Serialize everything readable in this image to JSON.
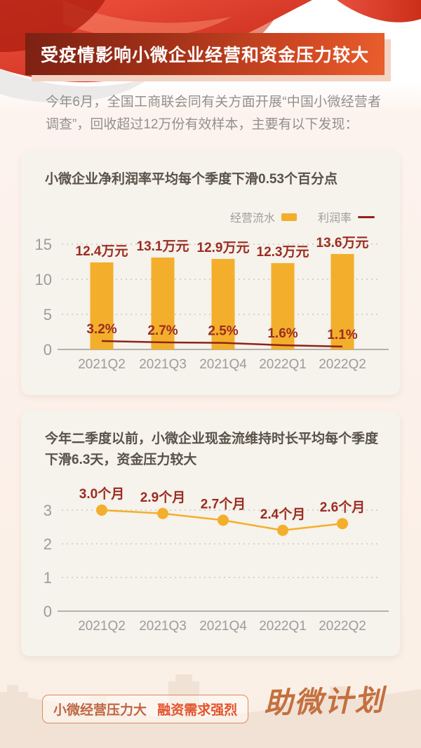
{
  "banner": {
    "title": "受疫情影响小微企业经营和资金压力较大"
  },
  "intro": {
    "text": "今年6月，全国工商联会同有关方面开展“中国小微经营者调查”，回收超过12万份有效样本，主要有以下发现："
  },
  "chart_data": [
    {
      "type": "bar",
      "title": "小微企业净利润率平均每个季度下滑0.53个百分点",
      "categories": [
        "2021Q2",
        "2021Q3",
        "2021Q4",
        "2022Q1",
        "2022Q2"
      ],
      "series": [
        {
          "name": "经营流水",
          "type": "bar",
          "values": [
            12.4,
            13.1,
            12.9,
            12.3,
            13.6
          ],
          "unit": "万元",
          "labels": [
            "12.4万元",
            "13.1万元",
            "12.9万元",
            "12.3万元",
            "13.6万元"
          ],
          "color": "#F3AF2B"
        },
        {
          "name": "利润率",
          "type": "line",
          "values": [
            3.2,
            2.7,
            2.5,
            1.6,
            1.1
          ],
          "unit": "%",
          "labels": [
            "3.2%",
            "2.7%",
            "2.5%",
            "1.6%",
            "1.1%"
          ],
          "color": "#8E2418"
        }
      ],
      "ylim": [
        0,
        15
      ],
      "yticks": [
        0,
        5,
        10,
        15
      ],
      "y2lim": [
        0,
        40
      ],
      "legend_position": "top-right",
      "grid": "dotted-horizontal"
    },
    {
      "type": "line",
      "title": "今年二季度以前，小微企业现金流维持时长平均每个季度下滑6.3天，资金压力较大",
      "categories": [
        "2021Q2",
        "2021Q3",
        "2021Q4",
        "2022Q1",
        "2022Q2"
      ],
      "values": [
        3.0,
        2.9,
        2.7,
        2.4,
        2.6
      ],
      "labels": [
        "3.0个月",
        "2.9个月",
        "2.7个月",
        "2.4个月",
        "2.6个月"
      ],
      "unit": "个月",
      "ylim": [
        0,
        3.5
      ],
      "yticks": [
        0,
        1,
        2,
        3
      ],
      "color": "#F3AF2B",
      "grid": "dotted-horizontal"
    }
  ],
  "footer": {
    "tag_left": "小微经营压力大",
    "tag_right": "融资需求强烈",
    "logo": "助微计划"
  },
  "colors": {
    "bar_yellow": "#F3AF2B",
    "label_dark_red": "#9B2C20",
    "profit_line_red": "#8E2418",
    "axis_gray": "#9C9C9C",
    "banner_gradient_left": "#7C2113",
    "banner_gradient_right": "#E95F2D",
    "card_bg": "#F6F2EC",
    "tag_orange": "#E2532C",
    "logo_brown": "#C4703F"
  }
}
